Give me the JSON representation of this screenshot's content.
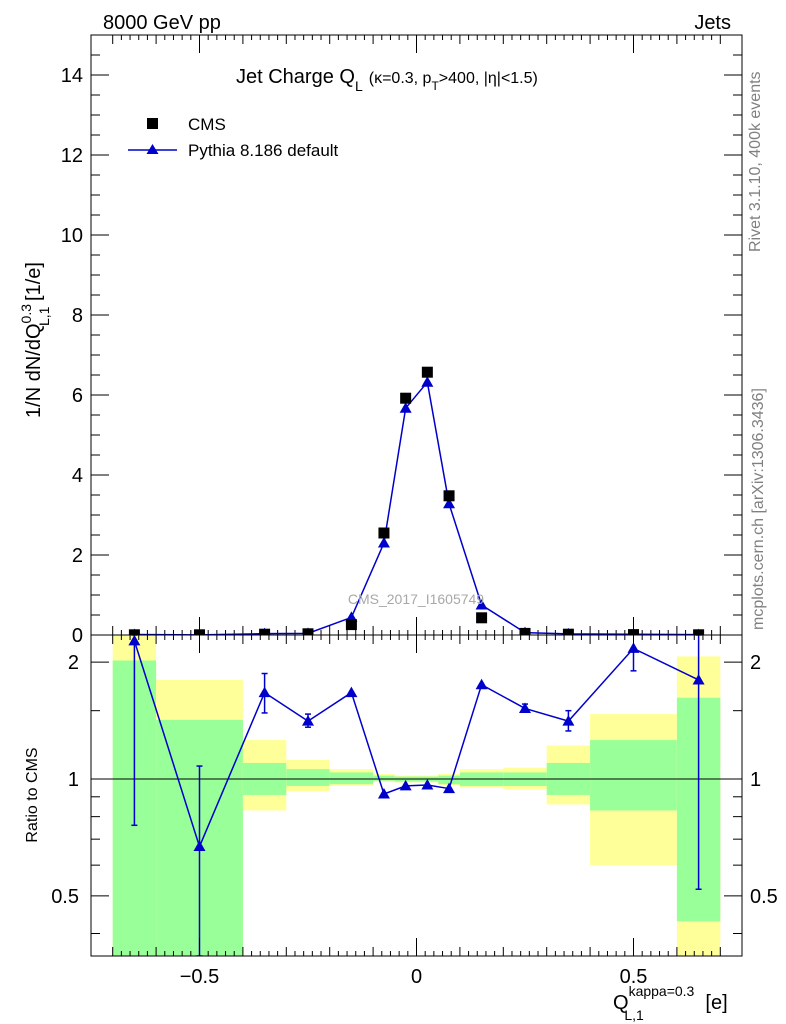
{
  "header": {
    "left_label": "8000 GeV pp",
    "right_label": "Jets"
  },
  "side_labels": {
    "rivet": "Rivet 3.1.10,  400k events",
    "mcplots": "mcplots.cern.ch [arXiv:1306.3436]"
  },
  "watermark": "CMS_2017_I1605749",
  "chart_data": [
    {
      "type": "scatter",
      "title": "Jet Charge Q_L (κ=0.3, p_T>400, |η|<1.5)",
      "title_parts": {
        "main": "Jet Charge Q",
        "main_sub": "L",
        "paren_open": "(κ=0.3, p",
        "paren_sub": "T",
        "paren_close": ">400, |η|<1.5)"
      },
      "ylabel": "1/N dN/dQ_{L,1}^{0.3} [1/e]",
      "ylabel_parts": {
        "a": "1/N dN/dQ",
        "sub": "L,1",
        "sup": "0.3",
        "b": " [1/e]"
      },
      "xlim": [
        -0.75,
        0.75
      ],
      "ylim": [
        0,
        15
      ],
      "yticks": [
        "0",
        "2",
        "4",
        "6",
        "8",
        "10",
        "12",
        "14"
      ],
      "ytick_values": [
        0,
        2,
        4,
        6,
        8,
        10,
        12,
        14
      ],
      "legend_position": "top-left",
      "series": [
        {
          "name": "CMS",
          "style": "markers",
          "marker": "square",
          "color": "#000000",
          "x": [
            -0.65,
            -0.5,
            -0.35,
            -0.25,
            -0.15,
            -0.075,
            -0.025,
            0.025,
            0.075,
            0.15,
            0.25,
            0.35,
            0.5,
            0.65
          ],
          "y": [
            0.005,
            0.005,
            0.02,
            0.03,
            0.26,
            2.55,
            5.92,
            6.57,
            3.48,
            0.43,
            0.04,
            0.02,
            0.01,
            0.005
          ]
        },
        {
          "name": "Pythia 8.186 default",
          "style": "line+markers",
          "marker": "triangle",
          "color": "#0000cc",
          "x": [
            -0.65,
            -0.5,
            -0.35,
            -0.25,
            -0.15,
            -0.075,
            -0.025,
            0.025,
            0.075,
            0.15,
            0.25,
            0.35,
            0.5,
            0.65
          ],
          "y": [
            0.011,
            0.003,
            0.034,
            0.042,
            0.44,
            2.3,
            5.67,
            6.32,
            3.28,
            0.75,
            0.06,
            0.028,
            0.02,
            0.009
          ]
        }
      ]
    },
    {
      "type": "scatter",
      "ylabel": "Ratio to CMS",
      "xlabel": "Q_{L,1}^{kappa=0.3} [e]",
      "xlabel_parts": {
        "a": "Q",
        "sub": "L,1",
        "sup": "kappa=0.3",
        "b": " [e]"
      },
      "xlim": [
        -0.75,
        0.75
      ],
      "ylim": [
        0.35,
        2.35
      ],
      "yscale": "log",
      "yticks": [
        "0.5",
        "1",
        "2"
      ],
      "ytick_values": [
        0.5,
        1,
        2
      ],
      "xticks": [
        "−0.5",
        "0",
        "0.5"
      ],
      "xtick_values": [
        -0.5,
        0,
        0.5
      ],
      "reference_line": 1,
      "bands": {
        "bin_edges": [
          -0.7,
          -0.6,
          -0.4,
          -0.3,
          -0.2,
          -0.1,
          -0.05,
          0.0,
          0.05,
          0.1,
          0.2,
          0.3,
          0.4,
          0.6,
          0.7
        ],
        "inner_color": "#99ff99",
        "outer_color": "#ffff99",
        "inner_lo": [
          0.3,
          0.3,
          0.91,
          0.96,
          0.97,
          0.99,
          0.985,
          0.985,
          0.97,
          0.96,
          0.96,
          0.91,
          0.83,
          0.43
        ],
        "inner_hi": [
          2.02,
          1.42,
          1.1,
          1.06,
          1.04,
          1.02,
          1.015,
          1.015,
          1.02,
          1.04,
          1.04,
          1.1,
          1.26,
          1.62
        ],
        "outer_lo": [
          0.3,
          0.3,
          0.83,
          0.93,
          0.96,
          0.985,
          0.98,
          0.98,
          0.965,
          0.95,
          0.94,
          0.86,
          0.6,
          0.3
        ],
        "outer_hi": [
          2.35,
          1.8,
          1.26,
          1.12,
          1.06,
          1.03,
          1.02,
          1.02,
          1.03,
          1.06,
          1.07,
          1.22,
          1.47,
          2.07
        ]
      },
      "series": [
        {
          "name": "Pythia 8.186 default",
          "style": "line+markers",
          "marker": "triangle",
          "color": "#0000cc",
          "x": [
            -0.65,
            -0.5,
            -0.35,
            -0.25,
            -0.15,
            -0.075,
            -0.025,
            0.025,
            0.075,
            0.15,
            0.25,
            0.35,
            0.5,
            0.65
          ],
          "y": [
            2.27,
            0.67,
            1.67,
            1.41,
            1.67,
            0.915,
            0.96,
            0.965,
            0.945,
            1.75,
            1.52,
            1.41,
            2.17,
            1.8
          ],
          "err_lo": [
            0.76,
            0.33,
            1.48,
            1.36,
            1.67,
            0.915,
            0.96,
            0.965,
            0.945,
            1.75,
            1.49,
            1.33,
            1.9,
            0.52
          ],
          "err_hi": [
            2.35,
            1.08,
            1.87,
            1.47,
            1.67,
            0.915,
            0.96,
            0.965,
            0.945,
            1.75,
            1.56,
            1.5,
            2.17,
            2.35
          ]
        }
      ]
    }
  ]
}
